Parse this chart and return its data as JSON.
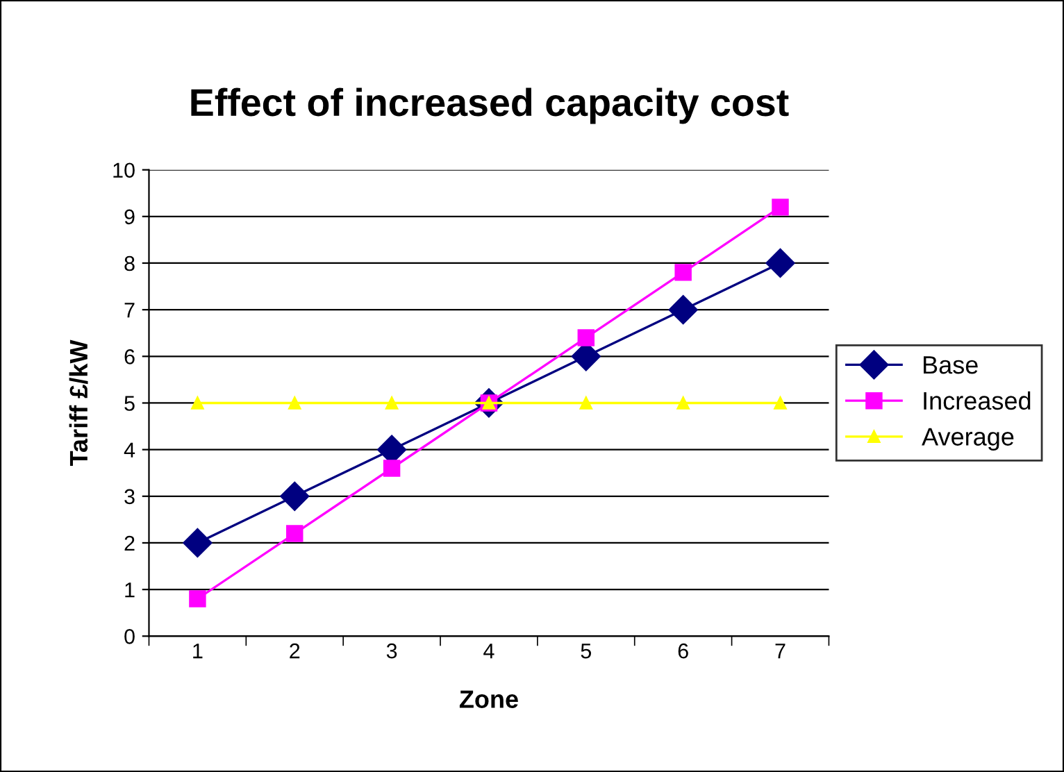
{
  "chart_data": {
    "type": "line",
    "title": "Effect of increased capacity cost",
    "xlabel": "Zone",
    "ylabel": "Tariff £/kW",
    "categories": [
      "1",
      "2",
      "3",
      "4",
      "5",
      "6",
      "7"
    ],
    "series": [
      {
        "name": "Base",
        "color": "#000080",
        "marker": "diamond",
        "values": [
          2,
          3,
          4,
          5,
          6,
          7,
          8
        ]
      },
      {
        "name": "Increased",
        "color": "#ff00ff",
        "marker": "square",
        "values": [
          0.8,
          2.2,
          3.6,
          5.0,
          6.4,
          7.8,
          9.2
        ]
      },
      {
        "name": "Average",
        "color": "#ffff00",
        "marker": "triangle",
        "values": [
          5,
          5,
          5,
          5,
          5,
          5,
          5
        ]
      }
    ],
    "ylim": [
      0,
      10
    ],
    "yticks": [
      0,
      1,
      2,
      3,
      4,
      5,
      6,
      7,
      8,
      9,
      10
    ],
    "grid": "y",
    "legend": "right",
    "line_style": "solid"
  }
}
